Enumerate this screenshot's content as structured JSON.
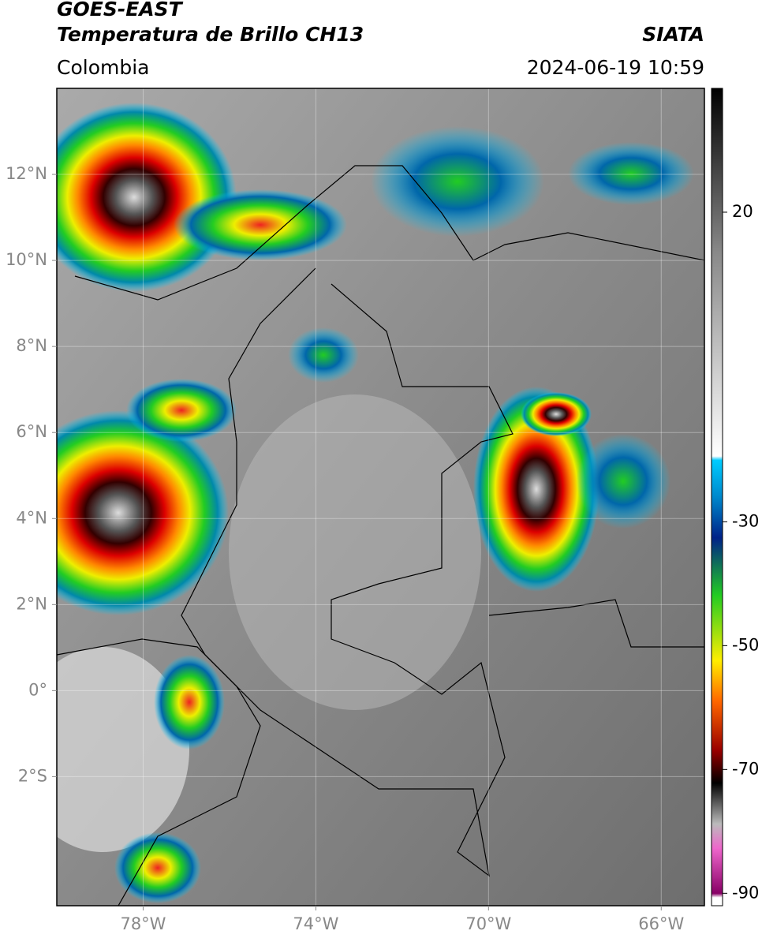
{
  "header": {
    "title": "GOES-EAST",
    "subtitle": "Temperatura de Brillo CH13",
    "source": "SIATA",
    "region": "Colombia",
    "datetime": "2024-06-19 10:59"
  },
  "map": {
    "xlim": [
      -80,
      -65
    ],
    "ylim": [
      -5,
      14
    ],
    "xticks": [
      {
        "value": -78,
        "label": "78°W"
      },
      {
        "value": -74,
        "label": "74°W"
      },
      {
        "value": -70,
        "label": "70°W"
      },
      {
        "value": -66,
        "label": "66°W"
      }
    ],
    "yticks": [
      {
        "value": 12,
        "label": "12°N"
      },
      {
        "value": 10,
        "label": "10°N"
      },
      {
        "value": 8,
        "label": "8°N"
      },
      {
        "value": 6,
        "label": "6°N"
      },
      {
        "value": 4,
        "label": "4°N"
      },
      {
        "value": 2,
        "label": "2°N"
      },
      {
        "value": 0,
        "label": "0°"
      },
      {
        "value": -2,
        "label": "2°S"
      }
    ]
  },
  "colorbar": {
    "range": [
      -92,
      40
    ],
    "ticks": [
      20,
      -30,
      -50,
      -70,
      -90
    ]
  }
}
